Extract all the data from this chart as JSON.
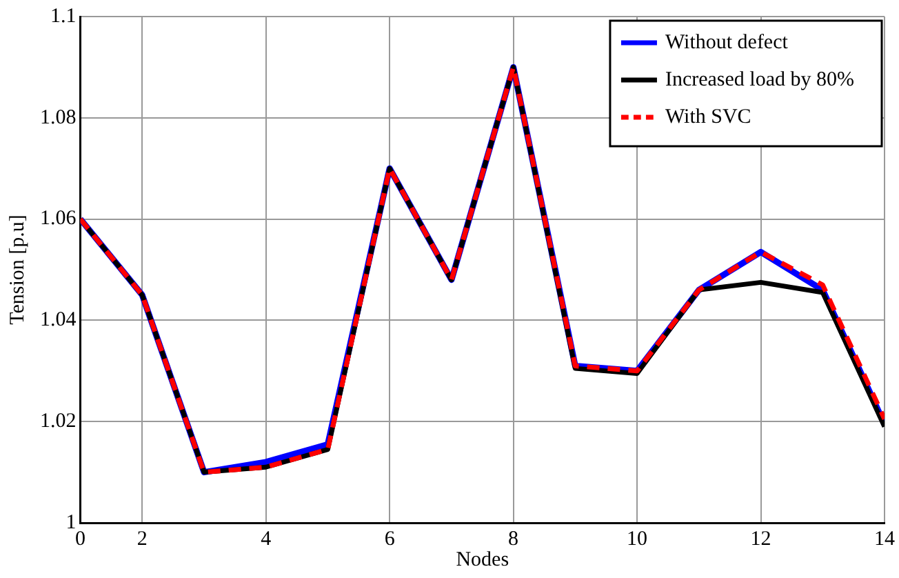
{
  "chart_data": {
    "type": "line",
    "xlabel": "Nodes",
    "ylabel": "Tension [p.u]",
    "categories": [
      "0",
      "2",
      null,
      "4",
      null,
      "6",
      null,
      "8",
      null,
      "10",
      null,
      "12",
      null,
      "14"
    ],
    "series": [
      {
        "name": "Without defect",
        "color": "#0000ff",
        "line_style": "solid",
        "values": [
          1.06,
          1.045,
          1.01,
          1.012,
          1.0155,
          1.07,
          1.048,
          1.09,
          1.031,
          1.03,
          1.046,
          1.0535,
          1.046,
          1.0195
        ]
      },
      {
        "name": "Increased load by 80%",
        "color": "#000000",
        "line_style": "solid",
        "values": [
          1.06,
          1.045,
          1.01,
          1.011,
          1.0145,
          1.07,
          1.048,
          1.09,
          1.0305,
          1.0295,
          1.046,
          1.0475,
          1.0455,
          1.019
        ]
      },
      {
        "name": "With SVC",
        "color": "#ff0000",
        "line_style": "dashed",
        "values": [
          1.06,
          1.045,
          1.01,
          1.011,
          1.0145,
          1.07,
          1.048,
          1.09,
          1.031,
          1.03,
          1.046,
          1.0535,
          1.047,
          1.0205
        ]
      }
    ],
    "ylim": [
      1,
      1.1
    ],
    "yticks": [
      1,
      1.02,
      1.04,
      1.06,
      1.08,
      1.1
    ],
    "grid": true,
    "legend": "top right",
    "marker": "none"
  }
}
